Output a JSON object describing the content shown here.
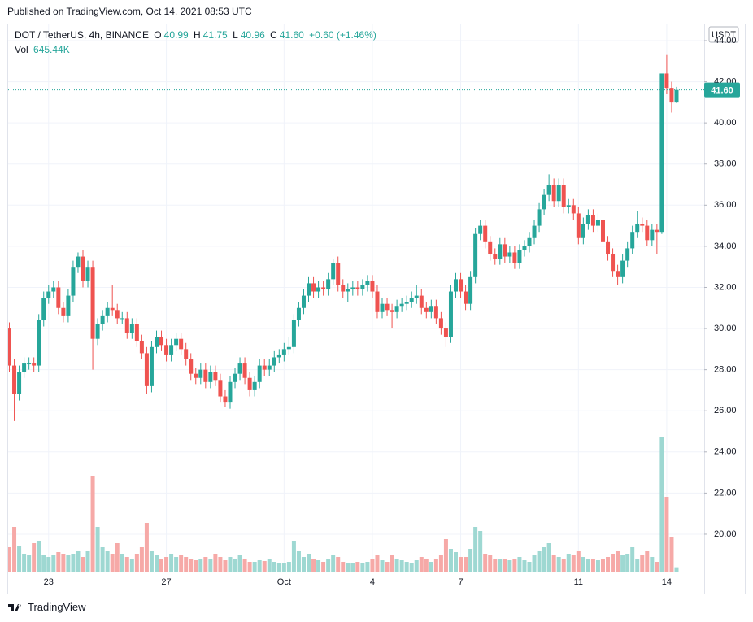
{
  "header": {
    "published": "Published on TradingView.com, Oct 14, 2021 08:53 UTC"
  },
  "chart_data": {
    "type": "candlestick",
    "symbol": "DOT / TetherUS, 4h, BINANCE",
    "legend": {
      "o_label": "O",
      "o": "40.99",
      "h_label": "H",
      "h": "41.75",
      "l_label": "L",
      "l": "40.96",
      "c_label": "C",
      "c": "41.60",
      "change": "+0.60 (+1.46%)",
      "vol_label": "Vol",
      "vol": "645.44K"
    },
    "currency": "USDT",
    "last_price_label": "41.60",
    "categories": [
      null,
      null,
      null,
      null,
      null,
      null,
      null,
      null,
      "23",
      null,
      null,
      null,
      null,
      null,
      null,
      null,
      null,
      null,
      null,
      null,
      null,
      null,
      null,
      null,
      null,
      null,
      null,
      null,
      null,
      null,
      null,
      null,
      "27",
      null,
      null,
      null,
      null,
      null,
      null,
      null,
      null,
      null,
      null,
      null,
      null,
      null,
      null,
      null,
      null,
      null,
      null,
      null,
      null,
      null,
      null,
      null,
      "Oct",
      null,
      null,
      null,
      null,
      null,
      null,
      null,
      null,
      null,
      null,
      null,
      null,
      null,
      null,
      null,
      null,
      null,
      "4",
      null,
      null,
      null,
      null,
      null,
      null,
      null,
      null,
      null,
      null,
      null,
      null,
      null,
      null,
      null,
      null,
      null,
      "7",
      null,
      null,
      null,
      null,
      null,
      null,
      null,
      null,
      null,
      null,
      null,
      null,
      null,
      null,
      null,
      null,
      null,
      null,
      null,
      null,
      null,
      null,
      null,
      "11",
      null,
      null,
      null,
      null,
      null,
      null,
      null,
      null,
      null,
      null,
      null,
      null,
      null,
      null,
      null,
      null,
      null,
      "14",
      null,
      null
    ],
    "open": [
      30.0,
      28.2,
      26.8,
      27.9,
      28.3,
      28.3,
      28.2,
      30.4,
      31.5,
      31.8,
      32.0,
      31.0,
      30.6,
      31.6,
      33.0,
      33.5,
      32.3,
      33.0,
      29.5,
      30.2,
      30.6,
      31.0,
      30.9,
      30.5,
      30.5,
      29.8,
      30.2,
      29.4,
      28.8,
      27.2,
      29.1,
      29.6,
      29.2,
      28.7,
      29.2,
      29.5,
      29.0,
      28.5,
      27.8,
      27.6,
      28.0,
      27.4,
      27.9,
      27.5,
      26.7,
      26.4,
      27.4,
      27.8,
      28.3,
      27.6,
      27.0,
      27.4,
      28.2,
      28.0,
      28.2,
      28.6,
      28.7,
      29.0,
      29.1,
      30.4,
      31.0,
      31.6,
      32.2,
      31.8,
      32.0,
      31.9,
      32.4,
      33.2,
      32.1,
      31.8,
      31.9,
      32.0,
      31.9,
      32.1,
      32.3,
      31.8,
      30.8,
      31.2,
      30.9,
      30.8,
      31.1,
      31.2,
      31.3,
      31.5,
      31.6,
      31.0,
      30.8,
      31.1,
      30.5,
      30.0,
      29.6,
      31.8,
      32.4,
      31.8,
      31.2,
      32.5,
      34.6,
      35.0,
      34.2,
      33.6,
      33.4,
      34.1,
      33.5,
      33.7,
      33.2,
      33.8,
      34.0,
      34.4,
      35.0,
      35.8,
      36.5,
      37.0,
      36.2,
      37.0,
      35.9,
      36.0,
      35.6,
      34.4,
      35.1,
      35.5,
      35.0,
      35.3,
      34.2,
      33.6,
      32.8,
      32.5,
      33.3,
      33.9,
      34.7,
      35.1,
      35.0,
      34.3,
      34.8,
      34.7,
      42.4,
      41.7,
      40.99
    ],
    "high": [
      30.3,
      28.5,
      28.2,
      28.6,
      28.6,
      28.6,
      30.7,
      31.8,
      32.1,
      32.3,
      32.3,
      31.3,
      31.9,
      33.3,
      33.7,
      33.8,
      33.3,
      33.3,
      30.5,
      30.9,
      31.3,
      32.1,
      31.2,
      30.8,
      30.8,
      30.5,
      30.5,
      29.7,
      29.1,
      29.4,
      29.9,
      29.9,
      29.5,
      29.5,
      29.8,
      29.8,
      29.3,
      28.8,
      28.1,
      28.3,
      28.3,
      28.2,
      28.2,
      27.8,
      27.0,
      27.7,
      28.1,
      28.6,
      28.6,
      27.9,
      27.7,
      28.5,
      28.5,
      28.5,
      28.9,
      29.0,
      29.3,
      29.6,
      30.7,
      31.3,
      31.9,
      32.5,
      32.5,
      32.3,
      32.3,
      32.7,
      33.4,
      33.5,
      32.4,
      32.2,
      32.3,
      32.3,
      32.4,
      32.6,
      32.6,
      32.1,
      31.5,
      31.5,
      31.2,
      31.4,
      31.5,
      31.6,
      31.8,
      32.1,
      31.9,
      31.3,
      31.4,
      31.4,
      30.8,
      30.3,
      32.1,
      32.7,
      32.7,
      32.1,
      32.8,
      34.9,
      35.3,
      35.3,
      34.5,
      33.9,
      34.4,
      34.4,
      34.0,
      34.0,
      34.1,
      34.3,
      34.7,
      35.3,
      36.1,
      36.8,
      37.5,
      37.3,
      37.3,
      37.3,
      36.3,
      36.3,
      35.9,
      35.4,
      35.8,
      35.8,
      35.6,
      35.6,
      34.5,
      33.9,
      33.1,
      33.6,
      34.2,
      35.0,
      35.7,
      35.4,
      35.3,
      35.1,
      35.1,
      42.4,
      43.3,
      42.0,
      41.75
    ],
    "low": [
      27.9,
      25.5,
      26.5,
      27.6,
      28.0,
      27.9,
      27.9,
      30.1,
      31.2,
      31.5,
      30.7,
      30.3,
      30.3,
      31.3,
      32.7,
      32.0,
      32.0,
      28.0,
      29.2,
      29.9,
      30.3,
      30.6,
      30.2,
      30.2,
      29.5,
      29.5,
      29.1,
      28.5,
      26.8,
      26.9,
      28.8,
      28.9,
      28.4,
      28.4,
      28.9,
      28.7,
      28.2,
      27.5,
      27.3,
      27.3,
      27.1,
      27.1,
      27.2,
      26.4,
      26.2,
      26.1,
      27.1,
      27.5,
      27.3,
      26.7,
      26.7,
      27.1,
      27.7,
      27.7,
      27.9,
      28.3,
      28.4,
      28.7,
      28.8,
      30.1,
      30.7,
      31.3,
      31.5,
      31.5,
      31.6,
      31.6,
      32.1,
      31.8,
      31.5,
      31.3,
      31.6,
      31.6,
      31.6,
      31.8,
      31.5,
      30.5,
      30.5,
      30.6,
      30.0,
      30.5,
      30.8,
      30.9,
      31.0,
      31.2,
      30.7,
      30.5,
      30.5,
      30.2,
      29.7,
      29.1,
      29.3,
      31.5,
      31.5,
      30.9,
      30.9,
      32.2,
      34.3,
      33.9,
      33.3,
      33.1,
      33.1,
      33.2,
      33.2,
      32.9,
      32.9,
      33.5,
      33.7,
      34.1,
      34.7,
      35.5,
      36.2,
      35.9,
      35.9,
      35.6,
      35.6,
      35.3,
      34.1,
      34.1,
      34.8,
      34.7,
      34.7,
      33.9,
      33.3,
      32.5,
      32.1,
      32.2,
      33.0,
      33.6,
      34.4,
      34.7,
      34.0,
      34.0,
      33.6,
      34.6,
      41.4,
      40.5,
      40.96
    ],
    "close": [
      28.2,
      26.8,
      27.9,
      28.3,
      28.3,
      28.2,
      30.4,
      31.5,
      31.8,
      32.0,
      31.0,
      30.6,
      31.6,
      33.0,
      33.5,
      32.3,
      33.0,
      29.5,
      30.2,
      30.6,
      31.0,
      30.9,
      30.5,
      30.5,
      29.8,
      30.2,
      29.4,
      28.8,
      27.2,
      29.1,
      29.6,
      29.2,
      28.7,
      29.2,
      29.5,
      29.0,
      28.5,
      27.8,
      27.6,
      28.0,
      27.4,
      27.9,
      27.5,
      26.7,
      26.4,
      27.4,
      27.8,
      28.3,
      27.6,
      27.0,
      27.4,
      28.2,
      28.0,
      28.2,
      28.6,
      28.7,
      29.0,
      29.1,
      30.4,
      31.0,
      31.6,
      32.2,
      31.8,
      32.0,
      31.9,
      32.4,
      33.2,
      32.1,
      31.8,
      31.9,
      32.0,
      31.9,
      32.1,
      32.3,
      31.8,
      30.8,
      31.2,
      30.9,
      30.8,
      31.1,
      31.2,
      31.3,
      31.5,
      31.6,
      31.0,
      30.8,
      31.1,
      30.5,
      30.0,
      29.6,
      31.8,
      32.4,
      31.8,
      31.2,
      32.5,
      34.6,
      35.0,
      34.2,
      33.6,
      33.4,
      34.1,
      33.5,
      33.7,
      33.2,
      33.8,
      34.0,
      34.4,
      35.0,
      35.8,
      36.5,
      37.0,
      36.2,
      37.0,
      35.9,
      36.0,
      35.6,
      34.4,
      35.1,
      35.5,
      35.0,
      35.3,
      34.2,
      33.6,
      32.8,
      32.5,
      33.3,
      33.9,
      34.7,
      35.1,
      35.0,
      34.3,
      34.8,
      34.7,
      42.4,
      41.7,
      40.99,
      41.6
    ],
    "volume": [
      3600000,
      6600000,
      3840000,
      2640000,
      2400000,
      4200000,
      4560000,
      2400000,
      2160000,
      2400000,
      2880000,
      2640000,
      2400000,
      2640000,
      3000000,
      2160000,
      3000000,
      14160000,
      6600000,
      3600000,
      3000000,
      2640000,
      4200000,
      2640000,
      2160000,
      1800000,
      2640000,
      3600000,
      7200000,
      3000000,
      2400000,
      1800000,
      2160000,
      2640000,
      2160000,
      2400000,
      2160000,
      1920000,
      1680000,
      1800000,
      2160000,
      1800000,
      2640000,
      2160000,
      1680000,
      2160000,
      1920000,
      2400000,
      1800000,
      1440000,
      1440000,
      1680000,
      1560000,
      1800000,
      1440000,
      1200000,
      1200000,
      1440000,
      4560000,
      3000000,
      2160000,
      2640000,
      1800000,
      1680000,
      1440000,
      1800000,
      2400000,
      2160000,
      1440000,
      1200000,
      1200000,
      1440000,
      1200000,
      1440000,
      1920000,
      2400000,
      1680000,
      1440000,
      2400000,
      1800000,
      1680000,
      1440000,
      1200000,
      1680000,
      2160000,
      1800000,
      1440000,
      1800000,
      2400000,
      4800000,
      3360000,
      2880000,
      2160000,
      2160000,
      3360000,
      6600000,
      6000000,
      2640000,
      2400000,
      1800000,
      1920000,
      1800000,
      1680000,
      1800000,
      2160000,
      1680000,
      1440000,
      2400000,
      3000000,
      3600000,
      4200000,
      2400000,
      2160000,
      1800000,
      2640000,
      2400000,
      3000000,
      2160000,
      1920000,
      1800000,
      1680000,
      1800000,
      2160000,
      2640000,
      3000000,
      2400000,
      2640000,
      3600000,
      1800000,
      2400000,
      3000000,
      2160000,
      1440000,
      19800000,
      11040000,
      5040000,
      645440
    ],
    "ylim": [
      18.18,
      44.79
    ],
    "yticks": [
      {
        "value": 20,
        "label": "20.00"
      },
      {
        "value": 22,
        "label": "22.00"
      },
      {
        "value": 24,
        "label": "24.00"
      },
      {
        "value": 26,
        "label": "26.00"
      },
      {
        "value": 28,
        "label": "28.00"
      },
      {
        "value": 30,
        "label": "30.00"
      },
      {
        "value": 32,
        "label": "32.00"
      },
      {
        "value": 34,
        "label": "34.00"
      },
      {
        "value": 36,
        "label": "36.00"
      },
      {
        "value": 38,
        "label": "38.00"
      },
      {
        "value": 40,
        "label": "40.00"
      },
      {
        "value": 42,
        "label": "42.00"
      },
      {
        "value": 44,
        "label": "44.00"
      }
    ],
    "grid": true,
    "up_color": "#26a69a",
    "down_color": "#ef5350",
    "volume_up_color": "#9ed8d2",
    "volume_down_color": "#f6a9a7"
  },
  "footer": {
    "brand": "TradingView"
  }
}
